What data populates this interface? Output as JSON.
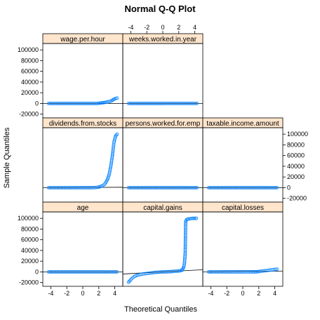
{
  "chart_data": {
    "type": "scatter",
    "title": "Normal Q-Q Plot",
    "xlabel": "Theoretical Quantiles",
    "ylabel": "Sample Quantiles",
    "xlim": [
      -5,
      5
    ],
    "ylim": [
      -27000,
      112000
    ],
    "x_ticks": [
      -4,
      -2,
      0,
      2,
      4
    ],
    "y_ticks": [
      -20000,
      0,
      20000,
      40000,
      60000,
      80000,
      100000
    ],
    "layout": {
      "columns": 3,
      "rows": 3
    },
    "strip_color": "#ffe5cc",
    "point_color": "#0080ff",
    "line_color": "#000000",
    "panels": [
      {
        "name": "wage.per.hour",
        "points": [
          [
            -4.3,
            0
          ],
          [
            -3,
            0
          ],
          [
            -2,
            0
          ],
          [
            -1,
            0
          ],
          [
            0,
            0
          ],
          [
            1,
            0
          ],
          [
            1.8,
            0
          ],
          [
            2.2,
            800
          ],
          [
            2.6,
            1500
          ],
          [
            3,
            2500
          ],
          [
            3.3,
            3500
          ],
          [
            3.6,
            5000
          ],
          [
            3.8,
            7000
          ],
          [
            4.0,
            9000
          ],
          [
            4.3,
            10000
          ]
        ],
        "ref_line": [
          [
            -5,
            0
          ],
          [
            5,
            0
          ]
        ]
      },
      {
        "name": "weeks.worked.in.year",
        "points": [
          [
            -4.3,
            0
          ],
          [
            -3,
            0
          ],
          [
            -2,
            0
          ],
          [
            -1,
            0
          ],
          [
            0,
            0
          ],
          [
            1,
            50
          ],
          [
            2,
            52
          ],
          [
            3,
            52
          ],
          [
            4.3,
            52
          ]
        ],
        "ref_line": [
          [
            -5,
            0
          ],
          [
            5,
            20
          ]
        ]
      },
      {
        "name": "",
        "empty": true
      },
      {
        "name": "dividends.from.stocks",
        "points": [
          [
            -4.3,
            0
          ],
          [
            -3,
            0
          ],
          [
            -2,
            0
          ],
          [
            -1,
            0
          ],
          [
            0,
            0
          ],
          [
            1,
            0
          ],
          [
            1.5,
            200
          ],
          [
            2,
            1000
          ],
          [
            2.4,
            3000
          ],
          [
            2.7,
            6000
          ],
          [
            2.9,
            10000
          ],
          [
            3.1,
            16000
          ],
          [
            3.3,
            25000
          ],
          [
            3.5,
            40000
          ],
          [
            3.7,
            60000
          ],
          [
            3.9,
            85000
          ],
          [
            4.1,
            97000
          ],
          [
            4.3,
            100000
          ]
        ],
        "ref_line": [
          [
            -5,
            -300
          ],
          [
            5,
            800
          ]
        ]
      },
      {
        "name": "persons.worked.for.emp",
        "points": [
          [
            -4.3,
            0
          ],
          [
            -3,
            0
          ],
          [
            -2,
            0
          ],
          [
            -1,
            0
          ],
          [
            0,
            0
          ],
          [
            1,
            0
          ],
          [
            2,
            0
          ],
          [
            3,
            0
          ],
          [
            4.3,
            0
          ]
        ],
        "ref_line": [
          [
            -5,
            0
          ],
          [
            5,
            0
          ]
        ]
      },
      {
        "name": "taxable.income.amount",
        "points": [
          [
            -4.3,
            0
          ],
          [
            -3,
            0
          ],
          [
            -2,
            0
          ],
          [
            -1,
            0
          ],
          [
            0,
            0
          ],
          [
            1,
            0
          ],
          [
            2,
            0
          ],
          [
            3,
            0
          ],
          [
            4.3,
            0
          ]
        ],
        "ref_line": [
          [
            -5,
            0
          ],
          [
            5,
            0
          ]
        ]
      },
      {
        "name": "age",
        "points": [
          [
            -4.3,
            0
          ],
          [
            -3,
            0
          ],
          [
            -2,
            0
          ],
          [
            -1,
            0
          ],
          [
            0,
            0
          ],
          [
            1,
            0
          ],
          [
            2,
            0
          ],
          [
            3,
            0
          ],
          [
            4.3,
            0
          ]
        ],
        "ref_line": [
          [
            -5,
            0
          ],
          [
            5,
            0
          ]
        ]
      },
      {
        "name": "capital.gains",
        "points": [
          [
            -4.3,
            -19500
          ],
          [
            -4.1,
            -16500
          ],
          [
            -3.9,
            -12500
          ],
          [
            -3.6,
            -9000
          ],
          [
            -3.3,
            -7000
          ],
          [
            -3,
            -5500
          ],
          [
            -2.5,
            -4000
          ],
          [
            -2,
            -3000
          ],
          [
            -1.5,
            -2000
          ],
          [
            -1,
            -1000
          ],
          [
            -0.5,
            -500
          ],
          [
            0,
            0
          ],
          [
            0.5,
            0
          ],
          [
            1,
            500
          ],
          [
            1.5,
            1000
          ],
          [
            2,
            1500
          ],
          [
            2.4,
            3000
          ],
          [
            2.6,
            8000
          ],
          [
            2.7,
            15000
          ],
          [
            2.75,
            25000
          ],
          [
            2.8,
            35000
          ],
          [
            2.85,
            92000
          ],
          [
            2.9,
            96000
          ],
          [
            3.0,
            98000
          ],
          [
            3.2,
            99000
          ],
          [
            3.5,
            99500
          ],
          [
            3.8,
            100000
          ],
          [
            4.2,
            100000
          ]
        ],
        "ref_line": [
          [
            -5,
            -4000
          ],
          [
            5,
            4000
          ]
        ]
      },
      {
        "name": "capital.losses",
        "points": [
          [
            -4.3,
            0
          ],
          [
            -3,
            0
          ],
          [
            -2,
            0
          ],
          [
            -1,
            0
          ],
          [
            0,
            0
          ],
          [
            1,
            0
          ],
          [
            1.6,
            0
          ],
          [
            2,
            500
          ],
          [
            2.5,
            1500
          ],
          [
            3,
            2500
          ],
          [
            3.5,
            3500
          ],
          [
            4,
            4500
          ],
          [
            4.3,
            5000
          ]
        ],
        "ref_line": [
          [
            -5,
            0
          ],
          [
            5,
            1500
          ]
        ]
      }
    ]
  }
}
